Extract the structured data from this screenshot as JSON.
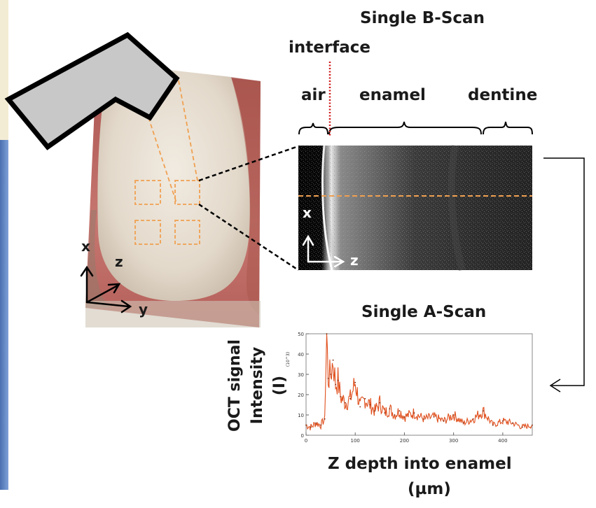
{
  "titles": {
    "bscan": "Single B-Scan",
    "interface": "interface",
    "ascan": "Single A-Scan"
  },
  "regions": {
    "air": "air",
    "enamel": "enamel",
    "dentine": "dentine"
  },
  "tooth_axes": {
    "x": "x",
    "z": "z",
    "y": "y"
  },
  "bscan_axes": {
    "x": "x",
    "z": "z"
  },
  "ascan": {
    "ylabel_line1": "OCT signal",
    "ylabel_line2": "Intensity",
    "ylabel_line3": "(I)",
    "xlabel_line1": "Z depth into enamel",
    "xlabel_line2": "(µm)",
    "unit_note": "(10^3)"
  },
  "colors": {
    "probe_fill": "#c8c8c8",
    "accent_orange": "#f0a050",
    "interface_red": "#d01818",
    "trace_orange": "#e0501e"
  },
  "chart_data": {
    "type": "line",
    "x": [
      0,
      10,
      20,
      30,
      38,
      42,
      45,
      50,
      55,
      60,
      65,
      70,
      80,
      90,
      100,
      110,
      120,
      130,
      140,
      150,
      160,
      170,
      180,
      190,
      200,
      220,
      240,
      260,
      280,
      300,
      320,
      340,
      360,
      380,
      400,
      420,
      440,
      460
    ],
    "values": [
      5,
      4,
      6,
      5,
      8,
      50,
      28,
      30,
      37,
      25,
      27,
      19,
      16,
      18,
      26,
      14,
      18,
      15,
      12,
      16,
      11,
      13,
      10,
      12,
      9,
      11,
      8,
      9,
      7,
      10,
      6,
      8,
      12,
      5,
      7,
      6,
      4,
      5
    ],
    "xlim": [
      0,
      460
    ],
    "ylim": [
      0,
      50
    ],
    "xticks": [
      0,
      100,
      200,
      300,
      400
    ],
    "yticks": [
      0,
      10,
      20,
      30,
      40,
      50
    ]
  }
}
